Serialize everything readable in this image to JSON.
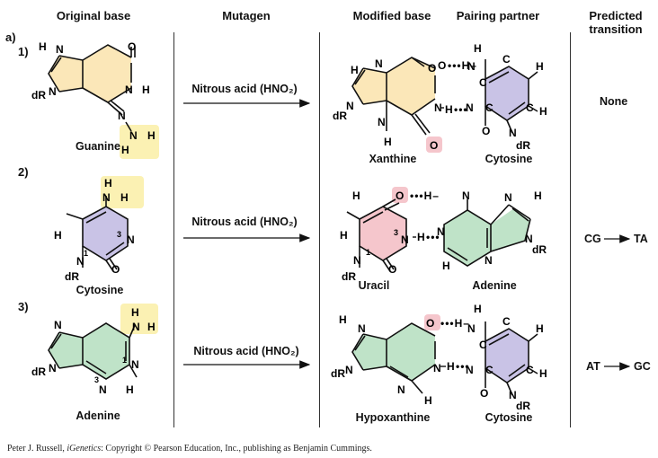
{
  "headers": {
    "original_base": "Original base",
    "mutagen": "Mutagen",
    "modified_base": "Modified base",
    "pairing_partner": "Pairing partner",
    "predicted_transition_1": "Predicted",
    "predicted_transition_2": "transition"
  },
  "panel_label": "a)",
  "rows": [
    {
      "number": "1)",
      "original": "Guanine",
      "mutagen": "Nitrous acid (HNO₂)",
      "modified": "Xanthine",
      "partner": "Cytosine",
      "transition": "None"
    },
    {
      "number": "2)",
      "original": "Cytosine",
      "mutagen": "Nitrous acid (HNO₂)",
      "modified": "Uracil",
      "partner": "Adenine",
      "transition_from": "CG",
      "transition_to": "TA"
    },
    {
      "number": "3)",
      "original": "Adenine",
      "mutagen": "Nitrous acid (HNO₂)",
      "modified": "Hypoxanthine",
      "partner": "Cytosine",
      "transition_from": "AT",
      "transition_to": "GC"
    }
  ],
  "colors": {
    "purine_g": "#fbe7b8",
    "pyrimidine_c": "#c9c3e6",
    "purine_a": "#bfe3c8",
    "uracil": "#f5c6cc",
    "amino_highlight": "#fbf1b3",
    "oxygen_highlight": "#f5c6cc"
  },
  "caption": {
    "before": "Peter J. Russell, ",
    "title": "iGenetics",
    "after": ": Copyright © Pearson Education, Inc., publishing as Benjamin Cummings."
  }
}
